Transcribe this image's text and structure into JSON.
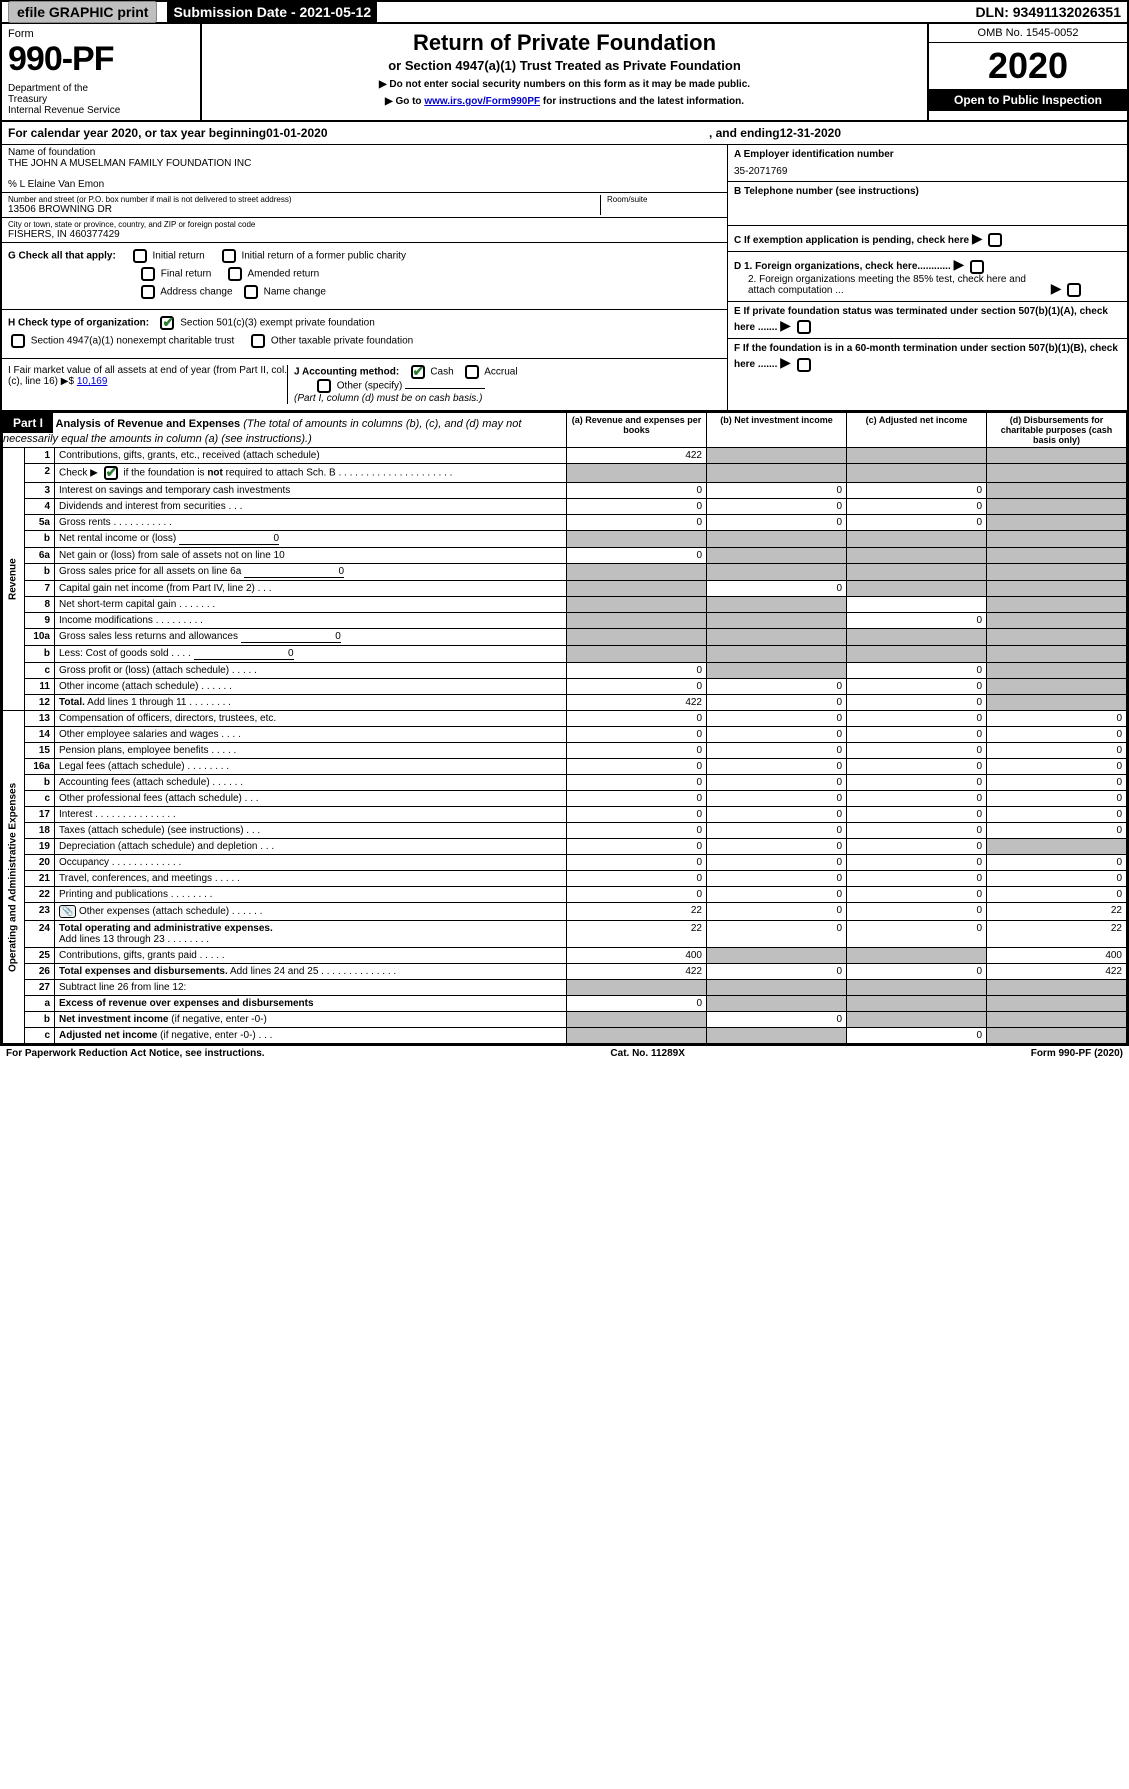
{
  "top": {
    "efile": "efile GRAPHIC print",
    "submission": "Submission Date - 2021-05-12",
    "dln": "DLN: 93491132026351"
  },
  "header": {
    "form_label": "Form",
    "form_num": "990-PF",
    "dept": "Department of the Treasury\nInternal Revenue Service",
    "title": "Return of Private Foundation",
    "subtitle": "or Section 4947(a)(1) Trust Treated as Private Foundation",
    "note1": "▶ Do not enter social security numbers on this form as it may be made public.",
    "note2": "▶ Go to ",
    "note2_link": "www.irs.gov/Form990PF",
    "note2_tail": " for instructions and the latest information.",
    "omb": "OMB No. 1545-0052",
    "year": "2020",
    "open": "Open to Public Inspection"
  },
  "cal": {
    "prefix": "For calendar year 2020, or tax year beginning ",
    "begin": "01-01-2020",
    "mid": " , and ending ",
    "end": "12-31-2020"
  },
  "name_block": {
    "label": "Name of foundation",
    "name": "THE JOHN A MUSELMAN FAMILY FOUNDATION INC",
    "care_of": "% L Elaine Van Emon",
    "addr_label": "Number and street (or P.O. box number if mail is not delivered to street address)",
    "addr": "13506 BROWNING DR",
    "room_label": "Room/suite",
    "city_label": "City or town, state or province, country, and ZIP or foreign postal code",
    "city": "FISHERS, IN  460377429"
  },
  "right_block": {
    "a_label": "A Employer identification number",
    "a_val": "35-2071769",
    "b_label": "B Telephone number (see instructions)",
    "c_label": "C If exemption application is pending, check here",
    "d1": "D 1. Foreign organizations, check here............",
    "d2": "2. Foreign organizations meeting the 85% test, check here and attach computation ...",
    "e": "E  If private foundation status was terminated under section 507(b)(1)(A), check here .......",
    "f": "F  If the foundation is in a 60-month termination under section 507(b)(1)(B), check here ......."
  },
  "g": {
    "label": "G Check all that apply:",
    "o1": "Initial return",
    "o2": "Initial return of a former public charity",
    "o3": "Final return",
    "o4": "Amended return",
    "o5": "Address change",
    "o6": "Name change"
  },
  "h": {
    "label": "H Check type of organization:",
    "o1": "Section 501(c)(3) exempt private foundation",
    "o2": "Section 4947(a)(1) nonexempt charitable trust",
    "o3": "Other taxable private foundation"
  },
  "i": {
    "label": "I Fair market value of all assets at end of year (from Part II, col. (c), line 16) ▶$",
    "val": "10,169"
  },
  "j": {
    "label": "J Accounting method:",
    "o1": "Cash",
    "o2": "Accrual",
    "o3": "Other (specify)",
    "note": "(Part I, column (d) must be on cash basis.)"
  },
  "part1": {
    "label": "Part I",
    "title": "Analysis of Revenue and Expenses",
    "sub": "(The total of amounts in columns (b), (c), and (d) may not necessarily equal the amounts in column (a) (see instructions).)",
    "col_a": "(a)   Revenue and expenses per books",
    "col_b": "(b)   Net investment income",
    "col_c": "(c)   Adjusted net income",
    "col_d": "(d)   Disbursements for charitable purposes (cash basis only)"
  },
  "side": {
    "revenue": "Revenue",
    "expenses": "Operating and Administrative Expenses"
  },
  "rows": [
    {
      "n": "1",
      "d": "Contributions, gifts, grants, etc., received (attach schedule)",
      "a": "422",
      "b": "",
      "c": "",
      "dd": "",
      "sa": false,
      "sb": true,
      "sc": true,
      "sd": true
    },
    {
      "n": "2",
      "d": "Check ▶ [✔] if the foundation is <b>not</b> required to attach Sch. B . . . . . . . . . . . . . . . . . . . . .",
      "a": "",
      "b": "",
      "c": "",
      "dd": "",
      "sa": true,
      "sb": true,
      "sc": true,
      "sd": true,
      "checked": true
    },
    {
      "n": "3",
      "d": "Interest on savings and temporary cash investments",
      "a": "0",
      "b": "0",
      "c": "0",
      "dd": "",
      "sa": false,
      "sb": false,
      "sc": false,
      "sd": true
    },
    {
      "n": "4",
      "d": "Dividends and interest from securities  .  .  .",
      "a": "0",
      "b": "0",
      "c": "0",
      "dd": "",
      "sa": false,
      "sb": false,
      "sc": false,
      "sd": true
    },
    {
      "n": "5a",
      "d": "Gross rents  . . . . . . . . . . .",
      "a": "0",
      "b": "0",
      "c": "0",
      "dd": "",
      "sa": false,
      "sb": false,
      "sc": false,
      "sd": true
    },
    {
      "n": "b",
      "d": "Net rental income or (loss)",
      "inline": "0",
      "a": "",
      "b": "",
      "c": "",
      "dd": "",
      "sa": true,
      "sb": true,
      "sc": true,
      "sd": true
    },
    {
      "n": "6a",
      "d": "Net gain or (loss) from sale of assets not on line 10",
      "a": "0",
      "b": "",
      "c": "",
      "dd": "",
      "sa": false,
      "sb": true,
      "sc": true,
      "sd": true
    },
    {
      "n": "b",
      "d": "Gross sales price for all assets on line 6a",
      "inline": "0",
      "a": "",
      "b": "",
      "c": "",
      "dd": "",
      "sa": true,
      "sb": true,
      "sc": true,
      "sd": true
    },
    {
      "n": "7",
      "d": "Capital gain net income (from Part IV, line 2)  .  .  .",
      "a": "",
      "b": "0",
      "c": "",
      "dd": "",
      "sa": true,
      "sb": false,
      "sc": true,
      "sd": true
    },
    {
      "n": "8",
      "d": "Net short-term capital gain  . . . . . . .",
      "a": "",
      "b": "",
      "c": "",
      "dd": "",
      "sa": true,
      "sb": true,
      "sc": false,
      "sd": true
    },
    {
      "n": "9",
      "d": "Income modifications  . . . . . . . . .",
      "a": "",
      "b": "",
      "c": "0",
      "dd": "",
      "sa": true,
      "sb": true,
      "sc": false,
      "sd": true
    },
    {
      "n": "10a",
      "d": "Gross sales less returns and allowances",
      "inline": "0",
      "a": "",
      "b": "",
      "c": "",
      "dd": "",
      "sa": true,
      "sb": true,
      "sc": true,
      "sd": true
    },
    {
      "n": "b",
      "d": "Less: Cost of goods sold  .  .  .  .",
      "inline": "0",
      "a": "",
      "b": "",
      "c": "",
      "dd": "",
      "sa": true,
      "sb": true,
      "sc": true,
      "sd": true
    },
    {
      "n": "c",
      "d": "Gross profit or (loss) (attach schedule)  .  .  .  .  .",
      "a": "0",
      "b": "",
      "c": "0",
      "dd": "",
      "sa": false,
      "sb": true,
      "sc": false,
      "sd": true
    },
    {
      "n": "11",
      "d": "Other income (attach schedule)  .  .  .  .  .  .",
      "a": "0",
      "b": "0",
      "c": "0",
      "dd": "",
      "sa": false,
      "sb": false,
      "sc": false,
      "sd": true
    },
    {
      "n": "12",
      "d": "<b>Total.</b> Add lines 1 through 11  .  .  .  .  .  .  .  .",
      "a": "422",
      "b": "0",
      "c": "0",
      "dd": "",
      "sa": false,
      "sb": false,
      "sc": false,
      "sd": true
    },
    {
      "n": "13",
      "d": "Compensation of officers, directors, trustees, etc.",
      "a": "0",
      "b": "0",
      "c": "0",
      "dd": "0",
      "sa": false,
      "sb": false,
      "sc": false,
      "sd": false
    },
    {
      "n": "14",
      "d": "Other employee salaries and wages  .  .  .  .",
      "a": "0",
      "b": "0",
      "c": "0",
      "dd": "0",
      "sa": false,
      "sb": false,
      "sc": false,
      "sd": false
    },
    {
      "n": "15",
      "d": "Pension plans, employee benefits  .  .  .  .  .",
      "a": "0",
      "b": "0",
      "c": "0",
      "dd": "0",
      "sa": false,
      "sb": false,
      "sc": false,
      "sd": false
    },
    {
      "n": "16a",
      "d": "Legal fees (attach schedule)  .  .  .  .  .  .  .  .",
      "a": "0",
      "b": "0",
      "c": "0",
      "dd": "0",
      "sa": false,
      "sb": false,
      "sc": false,
      "sd": false
    },
    {
      "n": "b",
      "d": "Accounting fees (attach schedule)  .  .  .  .  .  .",
      "a": "0",
      "b": "0",
      "c": "0",
      "dd": "0",
      "sa": false,
      "sb": false,
      "sc": false,
      "sd": false
    },
    {
      "n": "c",
      "d": "Other professional fees (attach schedule)  .  .  .",
      "a": "0",
      "b": "0",
      "c": "0",
      "dd": "0",
      "sa": false,
      "sb": false,
      "sc": false,
      "sd": false
    },
    {
      "n": "17",
      "d": "Interest  .  .  .  .  .  .  .  .  .  .  .  .  .  .  .",
      "a": "0",
      "b": "0",
      "c": "0",
      "dd": "0",
      "sa": false,
      "sb": false,
      "sc": false,
      "sd": false
    },
    {
      "n": "18",
      "d": "Taxes (attach schedule) (see instructions)  .  .  .",
      "a": "0",
      "b": "0",
      "c": "0",
      "dd": "0",
      "sa": false,
      "sb": false,
      "sc": false,
      "sd": false
    },
    {
      "n": "19",
      "d": "Depreciation (attach schedule) and depletion  .  .  .",
      "a": "0",
      "b": "0",
      "c": "0",
      "dd": "",
      "sa": false,
      "sb": false,
      "sc": false,
      "sd": true
    },
    {
      "n": "20",
      "d": "Occupancy  .  .  .  .  .  .  .  .  .  .  .  .  .",
      "a": "0",
      "b": "0",
      "c": "0",
      "dd": "0",
      "sa": false,
      "sb": false,
      "sc": false,
      "sd": false
    },
    {
      "n": "21",
      "d": "Travel, conferences, and meetings  .  .  .  .  .",
      "a": "0",
      "b": "0",
      "c": "0",
      "dd": "0",
      "sa": false,
      "sb": false,
      "sc": false,
      "sd": false
    },
    {
      "n": "22",
      "d": "Printing and publications  .  .  .  .  .  .  .  .",
      "a": "0",
      "b": "0",
      "c": "0",
      "dd": "0",
      "sa": false,
      "sb": false,
      "sc": false,
      "sd": false
    },
    {
      "n": "23",
      "d": "Other expenses (attach schedule)  .  .  .  .  .  .",
      "a": "22",
      "b": "0",
      "c": "0",
      "dd": "22",
      "sa": false,
      "sb": false,
      "sc": false,
      "sd": false,
      "icon": true
    },
    {
      "n": "24",
      "d": "<b>Total operating and administrative expenses.</b><br>Add lines 13 through 23  .  .  .  .  .  .  .  .",
      "a": "22",
      "b": "0",
      "c": "0",
      "dd": "22",
      "sa": false,
      "sb": false,
      "sc": false,
      "sd": false
    },
    {
      "n": "25",
      "d": "Contributions, gifts, grants paid  .  .  .  .  .",
      "a": "400",
      "b": "",
      "c": "",
      "dd": "400",
      "sa": false,
      "sb": true,
      "sc": true,
      "sd": false
    },
    {
      "n": "26",
      "d": "<b>Total expenses and disbursements.</b> Add lines 24 and 25  .  .  .  .  .  .  .  .  .  .  .  .  .  .",
      "a": "422",
      "b": "0",
      "c": "0",
      "dd": "422",
      "sa": false,
      "sb": false,
      "sc": false,
      "sd": false
    },
    {
      "n": "27",
      "d": "Subtract line 26 from line 12:",
      "a": "",
      "b": "",
      "c": "",
      "dd": "",
      "sa": true,
      "sb": true,
      "sc": true,
      "sd": true
    },
    {
      "n": "a",
      "d": "<b>Excess of revenue over expenses and disbursements</b>",
      "a": "0",
      "b": "",
      "c": "",
      "dd": "",
      "sa": false,
      "sb": true,
      "sc": true,
      "sd": true
    },
    {
      "n": "b",
      "d": "<b>Net investment income</b> (if negative, enter -0-)",
      "a": "",
      "b": "0",
      "c": "",
      "dd": "",
      "sa": true,
      "sb": false,
      "sc": true,
      "sd": true
    },
    {
      "n": "c",
      "d": "<b>Adjusted net income</b> (if negative, enter -0-)  .  .  .",
      "a": "",
      "b": "",
      "c": "0",
      "dd": "",
      "sa": true,
      "sb": true,
      "sc": false,
      "sd": true
    }
  ],
  "footer": {
    "left": "For Paperwork Reduction Act Notice, see instructions.",
    "mid": "Cat. No. 11289X",
    "right": "Form 990-PF (2020)"
  }
}
